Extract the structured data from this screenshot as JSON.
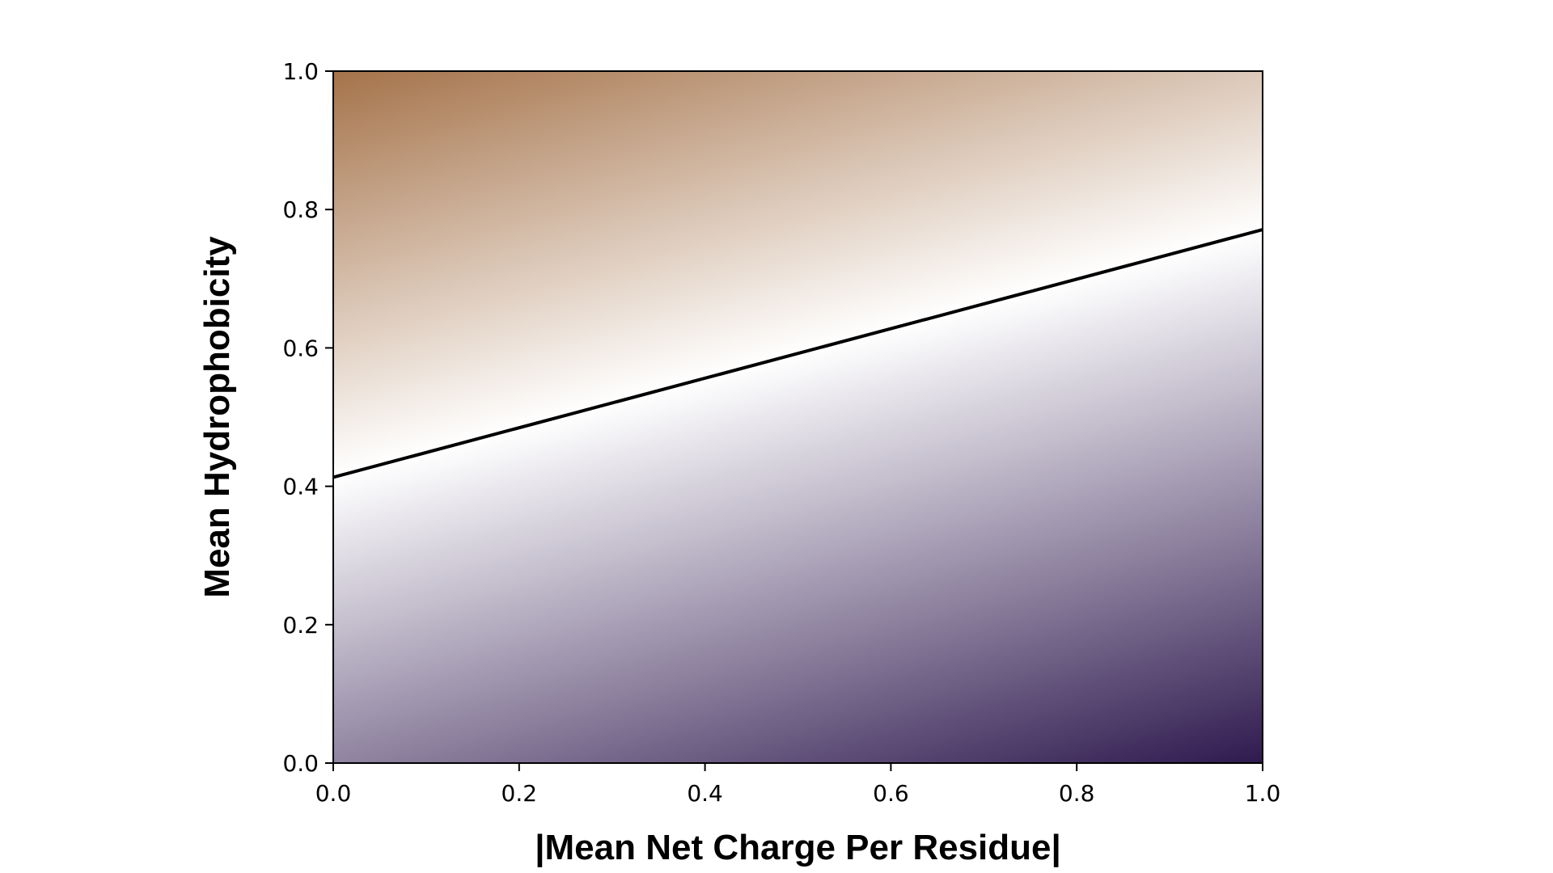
{
  "chart_data": {
    "type": "heatmap",
    "title": "",
    "xlabel": "|Mean Net Charge Per Residue|",
    "ylabel": "Mean Hydrophobicity",
    "xlim": [
      0.0,
      1.0
    ],
    "ylim": [
      0.0,
      1.0
    ],
    "x_ticks": [
      "0.0",
      "0.2",
      "0.4",
      "0.6",
      "0.8",
      "1.0"
    ],
    "y_ticks": [
      "0.0",
      "0.2",
      "0.4",
      "0.6",
      "0.8",
      "1.0"
    ],
    "boundary_line": {
      "x": [
        0.0,
        1.0
      ],
      "y": [
        0.413,
        0.771
      ]
    },
    "colors": {
      "top_left": "#a5734a",
      "boundary": "#ffffff",
      "bottom_right": "#2f1a4f",
      "line": "#000000"
    },
    "grid": false,
    "legend": "none"
  }
}
